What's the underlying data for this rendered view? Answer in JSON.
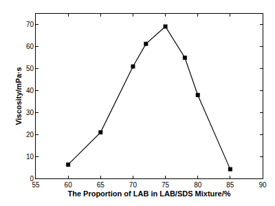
{
  "chart_data": {
    "type": "line",
    "xlabel": "The Proportion of LAB in LAB/SDS Mixture/%",
    "ylabel": "Viscosity/mPa·s",
    "x": [
      60,
      65,
      70,
      72,
      75,
      78,
      80,
      85
    ],
    "values": [
      6.3,
      21,
      51,
      61.3,
      69.2,
      55,
      38,
      4.2
    ],
    "color": "#000000",
    "marker": "square",
    "line_style": "solid",
    "xlim": [
      55,
      90
    ],
    "xticks": [
      55,
      60,
      65,
      70,
      75,
      80,
      85,
      90
    ],
    "ylim": [
      0,
      75
    ],
    "yticks": [
      0,
      10,
      20,
      30,
      40,
      50,
      60,
      70
    ],
    "grid": false
  }
}
